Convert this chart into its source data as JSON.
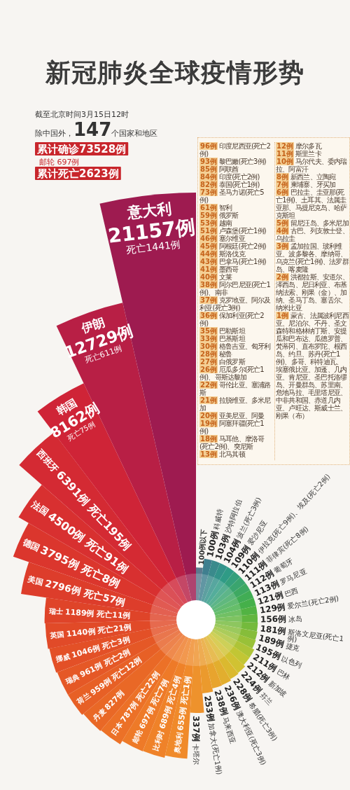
{
  "chart_data": [
    {
      "type": "other",
      "title": "新冠肺炎全球疫情形势",
      "subtitle": "截至北京时间3月15日12时",
      "annotations": [
        "除中国外，147个国家和地区",
        "累计确诊73528例",
        "邮轮 697例",
        "累计死亡2623例"
      ],
      "categories": [
        "100例以下",
        "科威特",
        "沙特阿拉伯",
        "波兰(死亡3例)",
        "爱沙尼亚",
        "伊拉克(死亡9例)、埃及(死亡2例)",
        "菲律宾(死亡8例)",
        "葡萄牙",
        "罗马尼亚",
        "巴西",
        "爱尔兰(死亡2例)",
        "冰岛",
        "斯洛文尼亚(死亡1例)",
        "捷克",
        "以色列",
        "巴林",
        "新加坡",
        "芬兰",
        "希腊(死亡3例)",
        "澳大利亚(死亡3例)",
        "马来西亚",
        "加拿大(死亡1例)",
        "卡塔尔",
        "奥地利",
        "比利时",
        "邮轮",
        "日本",
        "丹麦",
        "荷兰",
        "瑞典",
        "挪威",
        "英国",
        "瑞士",
        "美国",
        "德国",
        "法国",
        "西班牙",
        "韩国",
        "伊朗",
        "意大利"
      ],
      "values": [
        null,
        100,
        103,
        104,
        109,
        110,
        111,
        112,
        113,
        121,
        129,
        156,
        181,
        189,
        195,
        211,
        212,
        224,
        228,
        236,
        238,
        253,
        337,
        655,
        689,
        697,
        787,
        827,
        959,
        961,
        1046,
        1140,
        1189,
        2796,
        3795,
        4500,
        6391,
        8162,
        12729,
        21157
      ],
      "value_labels": [
        null,
        "100例",
        "103例",
        "104例",
        "109例",
        "110例",
        "111例",
        "112例",
        "113例",
        "121例",
        "129例",
        "156例",
        "181例",
        "189例",
        "195例",
        "211例",
        "212例",
        "224例",
        "228例",
        "236例",
        "238例",
        "253例",
        "337例",
        "655例 死亡1例",
        "689例 死亡4例",
        "697例 死亡7例",
        "787例 死亡22例",
        "827例",
        "959例 死亡12例",
        "961例 死亡2例",
        "1046例 死亡3例",
        "1140例 死亡21例",
        "1189例 死亡11例",
        "2796例 死亡57例",
        "3795例 死亡8例",
        "4500例 死亡91例",
        "6391例 死亡195例",
        "8162例 死亡75例",
        "12729例 死亡611例",
        "21157例 死亡1441例"
      ],
      "colors": [
        "#5b7a8f",
        "#3f7f8f",
        "#3a8a8c",
        "#33938a",
        "#2f9b86",
        "#35a07c",
        "#3aa56f",
        "#3ea962",
        "#41ad55",
        "#45b04a",
        "#52b343",
        "#62b63f",
        "#74ba3c",
        "#86bd3a",
        "#99c138",
        "#aec437",
        "#c2c634",
        "#d1c232",
        "#dbb92f",
        "#e2ae2e",
        "#e8a42e",
        "#eb9a2d",
        "#ee922c",
        "#f08a2a",
        "#ef8229",
        "#ee7a28",
        "#ec7127",
        "#e96826",
        "#e76026",
        "#e55826",
        "#e35027",
        "#e14a28",
        "#df4429",
        "#dd3d2b",
        "#db362d",
        "#d83030",
        "#d42a33",
        "#cf2437",
        "#b81f45",
        "#9e1b50"
      ]
    },
    {
      "type": "other",
      "annotations": [
        "96例 印度尼西亚(死亡2例)",
        "93例 黎巴嫩(死亡3例)",
        "85例 阿联酋",
        "84例 印度(死亡2例)",
        "82例 泰国(死亡1例)",
        "73例 圣马力诺(死亡5例)",
        "61例 智利",
        "59例 俄罗斯",
        "53例 越南",
        "51例 卢森堡(死亡1例)",
        "46例 塞尔维亚",
        "45例 阿根廷(死亡2例)",
        "44例 斯洛伐克",
        "43例 巴拿马(死亡1例)",
        "41例 墨西哥",
        "40例 文莱",
        "38例 阿尔巴尼亚(死亡1例)、南非",
        "37例 克罗地亚、阿尔及利亚(死亡3例)",
        "36例 保加利亚(死亡2例)",
        "35例 巴勒斯坦",
        "33例 巴基斯坦",
        "30例 格鲁吉亚、匈牙利",
        "28例 秘鲁",
        "27例 白俄罗斯",
        "26例 厄瓜多尔(死亡1例)、哥斯达黎加",
        "22例 哥伦比亚、塞浦路斯",
        "21例 拉脱维亚、多米尼加",
        "20例 亚美尼亚、阿曼",
        "19例 阿塞拜疆(死亡1例)",
        "18例 马耳他、摩洛哥(死亡2例)、突尼斯",
        "13例 北马其顿"
      ]
    },
    {
      "type": "other",
      "annotations": [
        "12例 摩尔多瓦",
        "11例 斯里兰卡",
        "10例 马尔代夫、委内瑞拉、阿富汗",
        "8例 新西兰、立陶宛",
        "7例 柬埔寨、牙买加",
        "6例 巴拉圭、圭亚那(死亡1例)、土耳其、法属圭亚那、马提尼克岛、哈萨克斯坦",
        "5例 留尼汪岛、多米尼加",
        "4例 古巴、列支敦士登、乌拉圭",
        "3例 孟加拉国、玻利维亚、波多黎各、摩纳哥、乌克兰(死亡1例)、法罗群岛、喀麦隆",
        "2例 洪都拉斯、安道尔、泽西岛、尼日利亚、布基纳法索、刚果（金）、加纳、圣马丁岛、塞舌尔、纳米比亚",
        "1例 蒙古、法属波利尼西亚、尼泊尔、不丹、圣文森特和格林纳丁斯、安提瓜和巴布达、瓜德罗普、梵蒂冈、直布罗陀、根西岛、约旦、苏丹(死亡1例)、多哥、科特迪瓦、埃塞俄比亚、加蓬、几内亚、肯尼亚、圣巴托洛缪岛、开曼群岛、苏里南、危地马拉、毛里塔尼亚、中非共和国、赤道几内亚、卢旺达、斯威士兰、刚果（布）"
      ]
    }
  ]
}
